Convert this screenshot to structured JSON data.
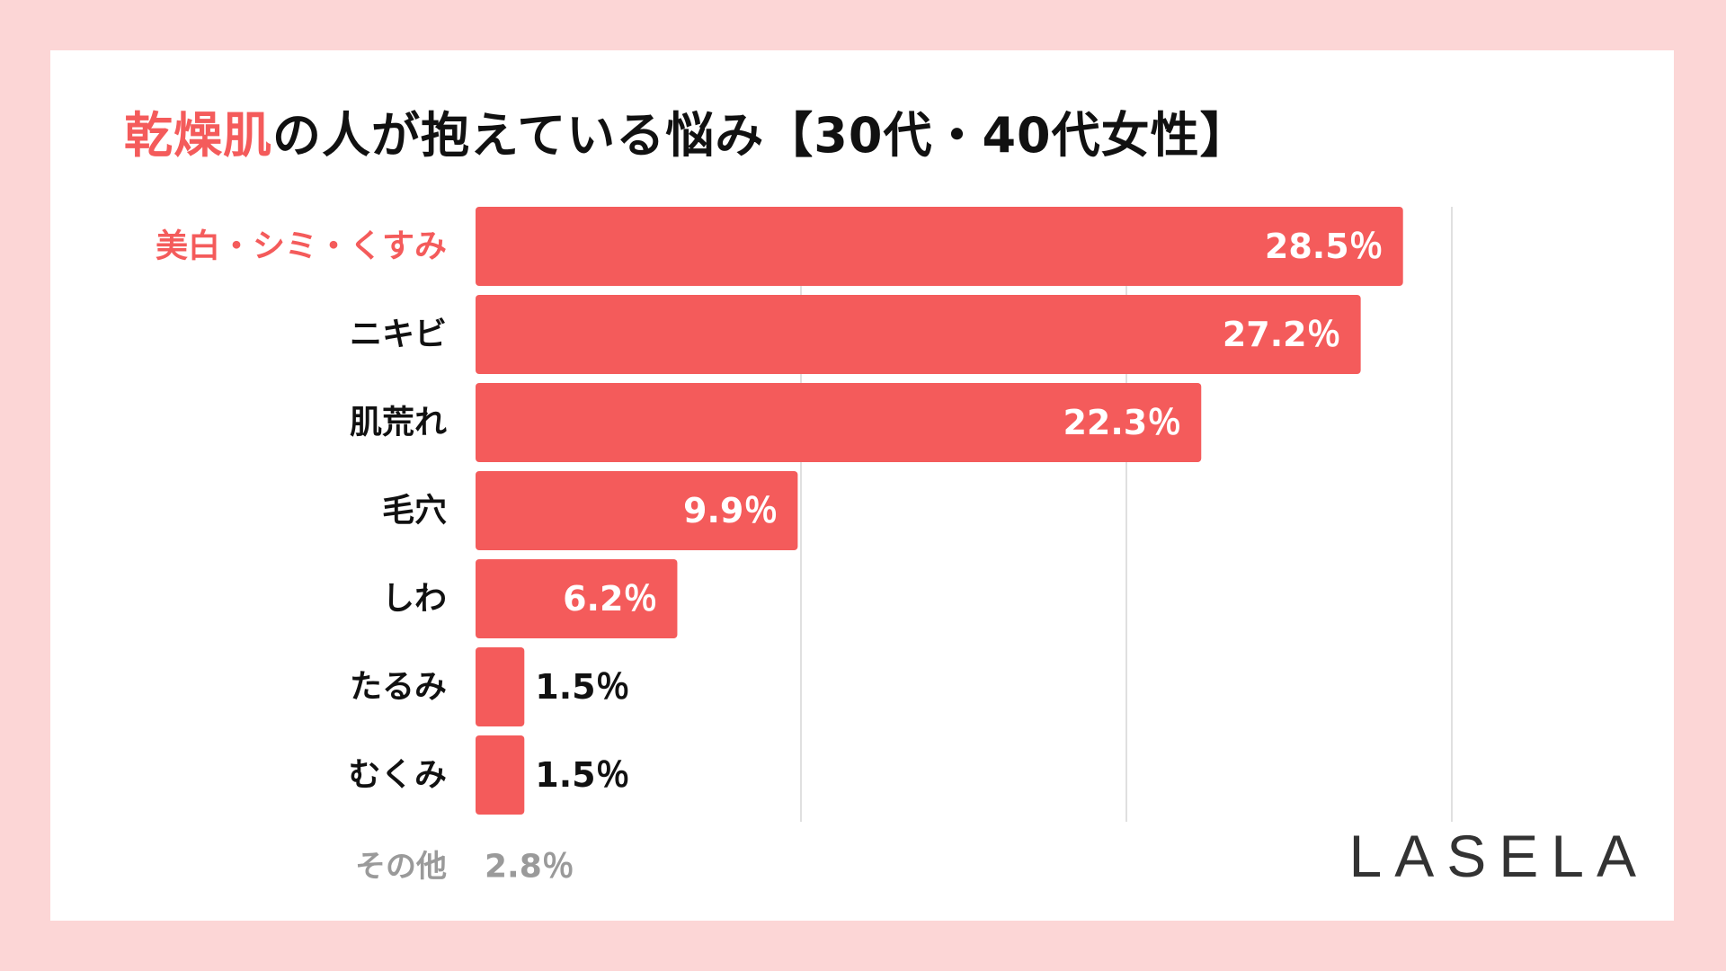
{
  "title": {
    "highlight": "乾燥肌",
    "rest": "の人が抱えている悩み【30代・40代女性】"
  },
  "logo": "LASELA",
  "colors": {
    "bar": "#f45b5b",
    "highlight_label": "#f45b5b",
    "label": "#111111",
    "muted": "#9a9a9a",
    "grid": "#d6d6d6",
    "background": "#fcd6d6"
  },
  "chart_data": {
    "type": "bar",
    "orientation": "horizontal",
    "title": "乾燥肌の人が抱えている悩み【30代・40代女性】",
    "categories": [
      "美白・シミ・くすみ",
      "ニキビ",
      "肌荒れ",
      "毛穴",
      "しわ",
      "たるみ",
      "むくみ"
    ],
    "values": [
      28.5,
      27.2,
      22.3,
      9.9,
      6.2,
      1.5,
      1.5
    ],
    "value_labels": [
      "28.5％",
      "27.2％",
      "22.3％",
      "9.9％",
      "6.2％",
      "1.5％",
      "1.5％"
    ],
    "highlight_index": 0,
    "unit": "%",
    "xlim": [
      0,
      30
    ],
    "gridlines": [
      10,
      20,
      30
    ],
    "grid": true,
    "other": {
      "label": "その他",
      "value": 2.8,
      "value_label": "2.8％"
    }
  }
}
